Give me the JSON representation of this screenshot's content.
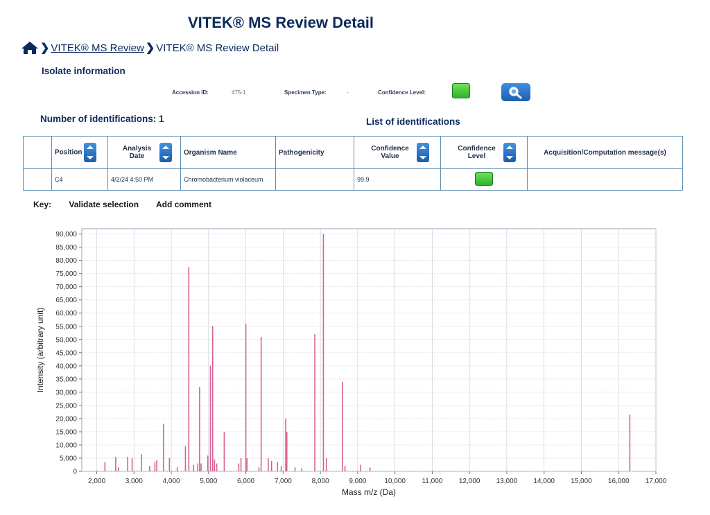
{
  "page": {
    "title": "VITEK® MS Review Detail"
  },
  "breadcrumb": {
    "link": "VITEK® MS Review",
    "current": "VITEK® MS Review Detail"
  },
  "isolate": {
    "heading": "Isolate information",
    "accession_label": "Accession ID:",
    "accession_value": "475-1",
    "specimen_label": "Specimen Type:",
    "specimen_value": "-",
    "confidence_label": "Confidence Level:",
    "confidence_color": "#3ccc36"
  },
  "identifications": {
    "count_label": "Number of identifications: 1",
    "list_title": "List of identifications",
    "columns": [
      "Position",
      "Analysis Date",
      "Organism Name",
      "Pathogenicity",
      "Confidence Value",
      "Confidence Level",
      "Acquisition/Computation message(s)"
    ],
    "rows": [
      {
        "position": "C4",
        "date": "4/2/24 4:50 PM",
        "organism": "Chromobacterium violaceum",
        "pathogenicity": "",
        "confidence_value": "99.9",
        "message": ""
      }
    ]
  },
  "key": {
    "label": "Key:",
    "validate": "Validate selection",
    "comment": "Add comment"
  },
  "chart_data": {
    "type": "bar",
    "xlabel": "Mass m/z (Da)",
    "ylabel": "Intensity (arbitrary unit)",
    "xlim": [
      1600,
      17000
    ],
    "ylim": [
      0,
      92000
    ],
    "grid": true,
    "color": "#d9608f",
    "x_tick_labels": [
      "2,000",
      "3,000",
      "4,000",
      "5,000",
      "6,000",
      "7,000",
      "8,000",
      "9,000",
      "10,000",
      "11,000",
      "12,000",
      "13,000",
      "14,000",
      "15,000",
      "16,000",
      "17,000"
    ],
    "y_tick_labels": [
      "0",
      "5,000",
      "10,000",
      "15,000",
      "20,000",
      "25,000",
      "30,000",
      "35,000",
      "40,000",
      "45,000",
      "50,000",
      "55,000",
      "60,000",
      "65,000",
      "70,000",
      "75,000",
      "80,000",
      "85,000",
      "90,000"
    ],
    "peaks": [
      [
        2220,
        3500
      ],
      [
        2510,
        5500
      ],
      [
        2580,
        1500
      ],
      [
        2830,
        5500
      ],
      [
        2950,
        5000
      ],
      [
        3200,
        6500
      ],
      [
        3420,
        2000
      ],
      [
        3560,
        3500
      ],
      [
        3610,
        4200
      ],
      [
        3790,
        18000
      ],
      [
        3950,
        5000
      ],
      [
        4160,
        1500
      ],
      [
        4380,
        9500
      ],
      [
        4470,
        77500
      ],
      [
        4600,
        2500
      ],
      [
        4710,
        3000
      ],
      [
        4760,
        32000
      ],
      [
        4800,
        3000
      ],
      [
        4980,
        6000
      ],
      [
        5050,
        40000
      ],
      [
        5110,
        55000
      ],
      [
        5160,
        4500
      ],
      [
        5220,
        3000
      ],
      [
        5420,
        15000
      ],
      [
        5810,
        3000
      ],
      [
        5870,
        5000
      ],
      [
        6000,
        56000
      ],
      [
        6030,
        5000
      ],
      [
        6350,
        1500
      ],
      [
        6410,
        51000
      ],
      [
        6600,
        5000
      ],
      [
        6690,
        4000
      ],
      [
        6850,
        3500
      ],
      [
        6950,
        2000
      ],
      [
        7070,
        20000
      ],
      [
        7100,
        15000
      ],
      [
        7320,
        1500
      ],
      [
        7500,
        1200
      ],
      [
        7850,
        52000
      ],
      [
        8080,
        90000
      ],
      [
        8160,
        5000
      ],
      [
        8590,
        34000
      ],
      [
        8660,
        2000
      ],
      [
        9080,
        2500
      ],
      [
        9330,
        1500
      ],
      [
        16300,
        21500
      ]
    ]
  }
}
